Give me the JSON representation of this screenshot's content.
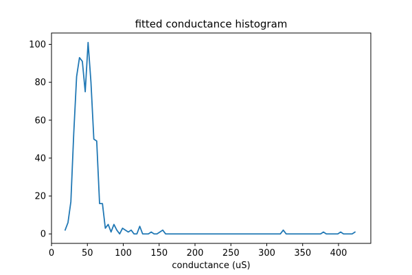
{
  "chart_data": {
    "type": "line",
    "title": "fitted conductance histogram",
    "xlabel": "conductance (uS)",
    "ylabel": "",
    "xlim": [
      0,
      445
    ],
    "ylim": [
      -5,
      106
    ],
    "xticks": [
      0,
      50,
      100,
      150,
      200,
      250,
      300,
      350,
      400
    ],
    "yticks": [
      0,
      20,
      40,
      60,
      80,
      100
    ],
    "grid": false,
    "series": [
      {
        "color": "#1f77b4",
        "x": [
          19,
          23,
          27,
          31,
          35,
          39,
          43,
          47,
          51,
          55,
          59,
          63,
          67,
          71,
          75,
          79,
          83,
          87,
          91,
          95,
          99,
          103,
          107,
          111,
          115,
          119,
          123,
          127,
          131,
          135,
          139,
          143,
          147,
          151,
          155,
          159,
          163,
          167,
          171,
          175,
          179,
          183,
          187,
          191,
          195,
          199,
          203,
          207,
          211,
          215,
          219,
          223,
          227,
          231,
          235,
          239,
          243,
          247,
          251,
          255,
          259,
          263,
          267,
          271,
          275,
          279,
          283,
          287,
          291,
          295,
          299,
          303,
          307,
          311,
          315,
          319,
          323,
          327,
          331,
          335,
          339,
          343,
          347,
          351,
          355,
          359,
          363,
          367,
          371,
          375,
          379,
          383,
          387,
          391,
          395,
          399,
          403,
          407,
          411,
          415,
          419,
          423
        ],
        "values": [
          2,
          6,
          17,
          53,
          83,
          93,
          91,
          75,
          101,
          80,
          50,
          49,
          16,
          16,
          3,
          5,
          1,
          5,
          2,
          0,
          3,
          2,
          1,
          2,
          0,
          0,
          4,
          0,
          0,
          0,
          1,
          0,
          0,
          1,
          2,
          0,
          0,
          0,
          0,
          0,
          0,
          0,
          0,
          0,
          0,
          0,
          0,
          0,
          0,
          0,
          0,
          0,
          0,
          0,
          0,
          0,
          0,
          0,
          0,
          0,
          0,
          0,
          0,
          0,
          0,
          0,
          0,
          0,
          0,
          0,
          0,
          0,
          0,
          0,
          0,
          0,
          2,
          0,
          0,
          0,
          0,
          0,
          0,
          0,
          0,
          0,
          0,
          0,
          0,
          0,
          1,
          0,
          0,
          0,
          0,
          0,
          1,
          0,
          0,
          0,
          0,
          1
        ]
      }
    ]
  }
}
